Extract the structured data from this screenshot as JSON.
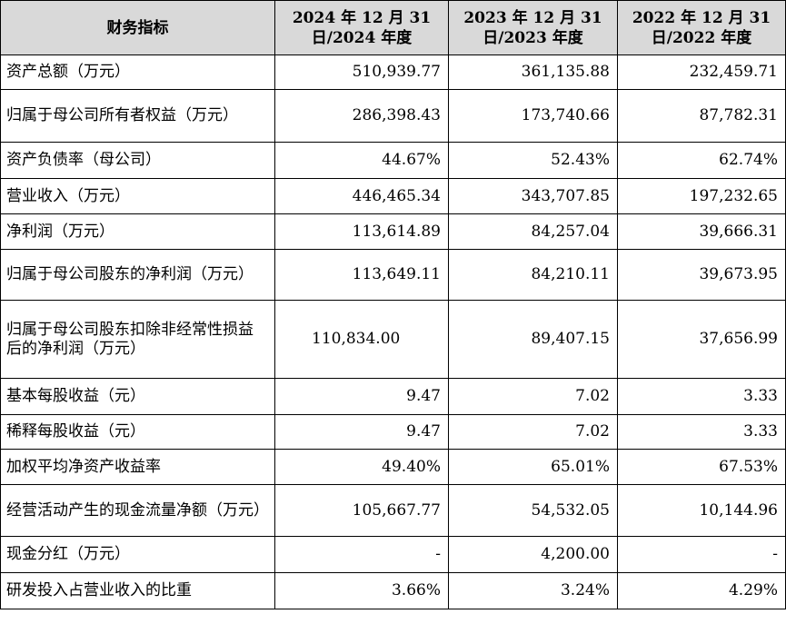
{
  "table": {
    "headers": [
      "财务指标",
      "2024 年 12 月 31 日/2024 年度",
      "2023 年 12 月 31 日/2023 年度",
      "2022 年 12 月 31 日/2022 年度"
    ],
    "rows": [
      {
        "label": "资产总额（万元）",
        "values": [
          "510,939.77",
          "361,135.88",
          "232,459.71"
        ]
      },
      {
        "label": "归属于母公司所有者权益（万元）",
        "values": [
          "286,398.43",
          "173,740.66",
          "87,782.31"
        ]
      },
      {
        "label": "资产负债率（母公司）",
        "values": [
          "44.67%",
          "52.43%",
          "62.74%"
        ]
      },
      {
        "label": "营业收入（万元）",
        "values": [
          "446,465.34",
          "343,707.85",
          "197,232.65"
        ]
      },
      {
        "label": "净利润（万元）",
        "values": [
          "113,614.89",
          "84,257.04",
          "39,666.31"
        ]
      },
      {
        "label": "归属于母公司股东的净利润（万元）",
        "values": [
          "113,649.11",
          "84,210.11",
          "39,673.95"
        ]
      },
      {
        "label": "归属于母公司股东扣除非经常性损益后的净利润（万元）",
        "values": [
          "110,834.00",
          "89,407.15",
          "37,656.99"
        ]
      },
      {
        "label": "基本每股收益（元）",
        "values": [
          "9.47",
          "7.02",
          "3.33"
        ]
      },
      {
        "label": "稀释每股收益（元）",
        "values": [
          "9.47",
          "7.02",
          "3.33"
        ]
      },
      {
        "label": "加权平均净资产收益率",
        "values": [
          "49.40%",
          "65.01%",
          "67.53%"
        ]
      },
      {
        "label": "经营活动产生的现金流量净额（万元）",
        "values": [
          "105,667.77",
          "54,532.05",
          "10,144.96"
        ]
      },
      {
        "label": "现金分红（万元）",
        "values": [
          "-",
          "4,200.00",
          "-"
        ]
      },
      {
        "label": "研发投入占营业收入的比重",
        "values": [
          "3.66%",
          "3.24%",
          "4.29%"
        ]
      }
    ]
  }
}
